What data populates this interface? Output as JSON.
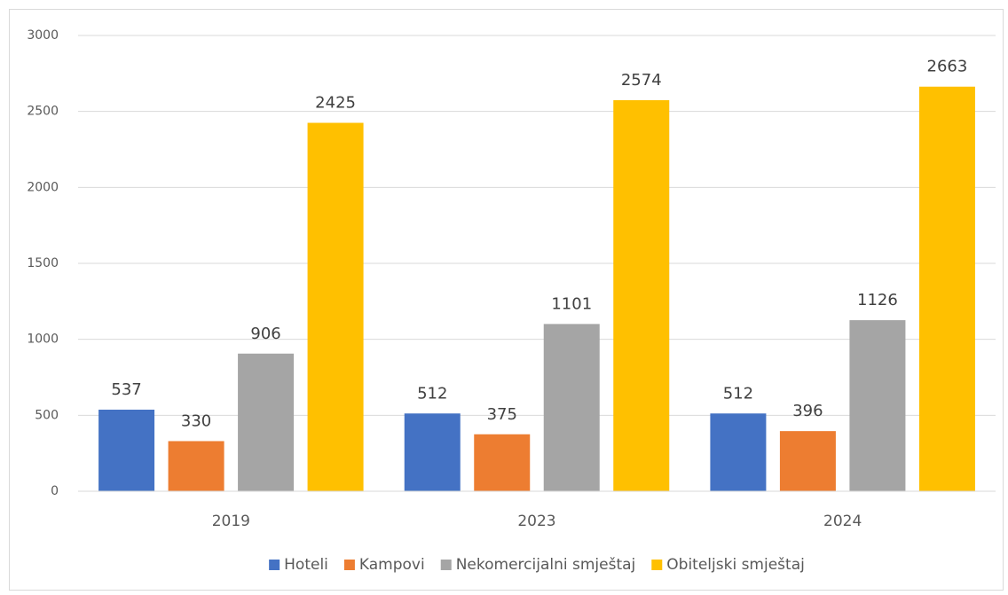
{
  "chart_data": {
    "type": "bar",
    "categories": [
      "2019",
      "2023",
      "2024"
    ],
    "series": [
      {
        "name": "Hoteli",
        "color": "#4472c4",
        "values": [
          537,
          512,
          512
        ]
      },
      {
        "name": "Kampovi",
        "color": "#ed7d31",
        "values": [
          330,
          375,
          396
        ]
      },
      {
        "name": "Nekomercijalni smještaj",
        "color": "#a5a5a5",
        "values": [
          906,
          1101,
          1126
        ]
      },
      {
        "name": "Obiteljski smještaj",
        "color": "#ffc000",
        "values": [
          2425,
          2574,
          2663
        ]
      }
    ],
    "ylim": [
      0,
      3000
    ],
    "yticks": [
      0,
      500,
      1000,
      1500,
      2000,
      2500,
      3000
    ],
    "grid": true,
    "legend": "bottom",
    "data_labels": true
  }
}
